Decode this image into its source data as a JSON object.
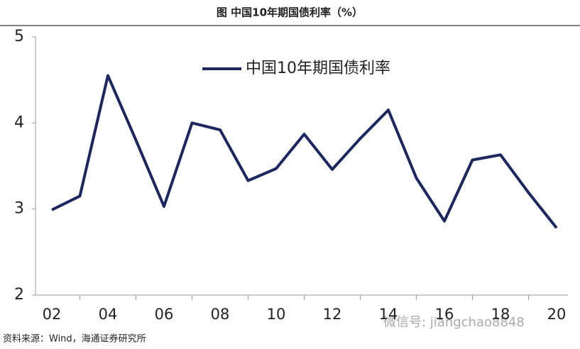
{
  "chart_data": {
    "type": "line",
    "title": "图  中国10年期国债利率（%）",
    "categories": [
      "02",
      null,
      "04",
      null,
      "06",
      null,
      "08",
      null,
      "10",
      null,
      "12",
      null,
      "14",
      null,
      "16",
      null,
      "18",
      null,
      "20"
    ],
    "series": [
      {
        "name": "中国10年期国债利率",
        "color": "#1c2760",
        "values": [
          2.99,
          3.15,
          4.55,
          3.8,
          3.03,
          4.0,
          3.92,
          3.33,
          3.47,
          3.87,
          3.46,
          3.82,
          4.15,
          3.36,
          2.86,
          3.57,
          3.63,
          3.19,
          2.78
        ]
      }
    ],
    "ylim": [
      2,
      5
    ],
    "yticks": [
      2,
      3,
      4,
      5
    ],
    "grid": false,
    "source": "资料来源：Wind，海通证券研究所",
    "watermark": "微信号: jiangchao8848"
  }
}
